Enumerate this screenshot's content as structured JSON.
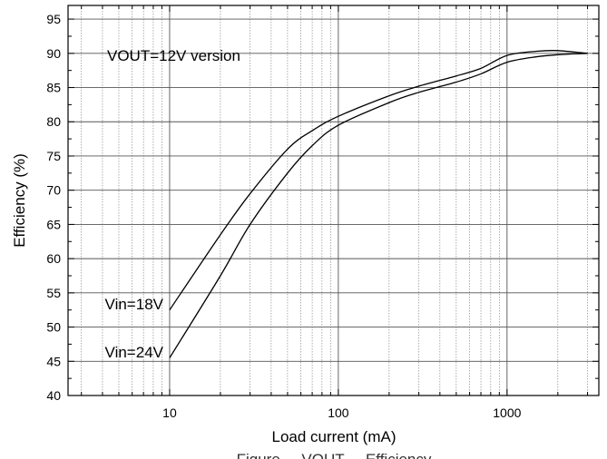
{
  "chart_data": {
    "type": "line",
    "xlabel": "Load current (mA)",
    "ylabel": "Efficiency (%)",
    "x_scale": "log",
    "xlim": [
      2.5,
      3500
    ],
    "ylim": [
      40,
      97
    ],
    "x_ticks": [
      10,
      100,
      1000
    ],
    "x_tick_labels": [
      "10",
      "100",
      "1000"
    ],
    "y_ticks": [
      40,
      45,
      50,
      55,
      60,
      65,
      70,
      75,
      80,
      85,
      90,
      95
    ],
    "y_tick_labels": [
      "40",
      "45",
      "50",
      "55",
      "60",
      "65",
      "70",
      "75",
      "80",
      "85",
      "90",
      "95"
    ],
    "grid": true,
    "annotation": "VOUT=12V version",
    "caption_fragment": "Figure ... VOUT ... Efficiency",
    "series": [
      {
        "name": "Vin=18V",
        "x": [
          10,
          20,
          30,
          50,
          70,
          100,
          200,
          300,
          500,
          700,
          1000,
          1500,
          2000,
          3000
        ],
        "y": [
          52.5,
          63.5,
          69.5,
          76,
          78.7,
          80.8,
          83.8,
          85.2,
          86.7,
          87.8,
          89.7,
          90.3,
          90.4,
          90.0
        ]
      },
      {
        "name": "Vin=24V",
        "x": [
          10,
          20,
          30,
          50,
          70,
          100,
          200,
          300,
          500,
          700,
          1000,
          1500,
          2000,
          3000
        ],
        "y": [
          45.5,
          57.5,
          65,
          72.5,
          76.5,
          79.5,
          82.8,
          84.3,
          85.8,
          87.0,
          88.7,
          89.5,
          89.8,
          90.0
        ]
      }
    ]
  }
}
